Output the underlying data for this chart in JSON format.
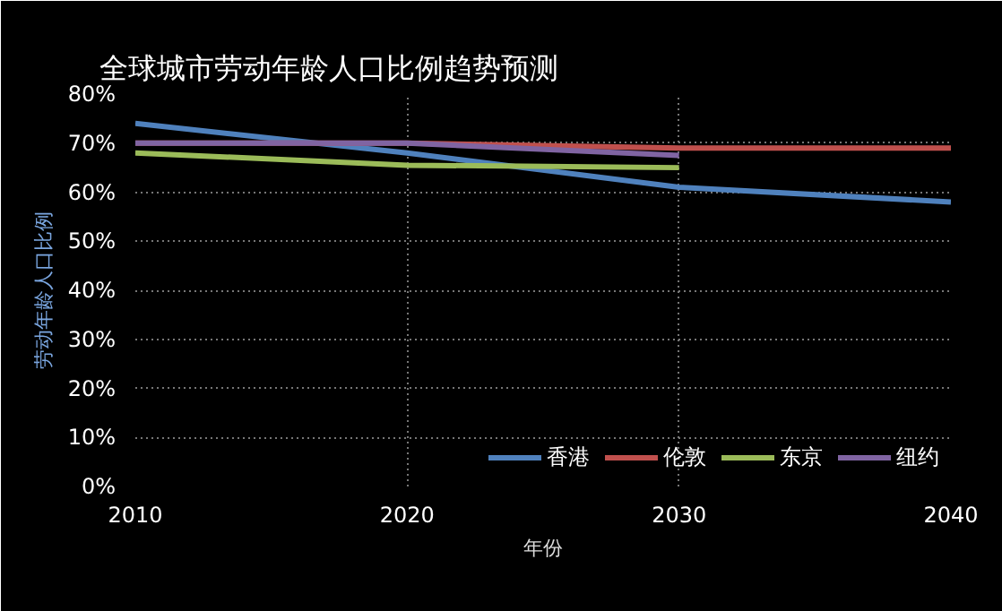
{
  "chart_data": {
    "type": "line",
    "title": "全球城市劳动年龄人口比例趋势预测",
    "xlabel": "年份",
    "ylabel": "劳动年龄人口比例",
    "x": [
      2010,
      2020,
      2030,
      2040
    ],
    "series": [
      {
        "name": "香港",
        "color": "#4f81bd",
        "values": [
          74,
          68,
          61,
          58
        ]
      },
      {
        "name": "伦敦",
        "color": "#c0504d",
        "values": [
          70,
          70,
          69,
          69
        ]
      },
      {
        "name": "东京",
        "color": "#9bbb59",
        "values": [
          68,
          65.5,
          65,
          null
        ]
      },
      {
        "name": "纽约",
        "color": "#8064a2",
        "values": [
          70,
          70,
          67.5,
          null
        ]
      }
    ],
    "xlim": [
      2010,
      2040
    ],
    "xticks": [
      2010,
      2020,
      2030,
      2040
    ],
    "ylim": [
      0,
      80
    ],
    "yticks": [
      {
        "value": 0,
        "label": "0%"
      },
      {
        "value": 10,
        "label": "10%"
      },
      {
        "value": 20,
        "label": "20%"
      },
      {
        "value": 30,
        "label": "30%"
      },
      {
        "value": 40,
        "label": "40%"
      },
      {
        "value": 50,
        "label": "50%"
      },
      {
        "value": 60,
        "label": "60%"
      },
      {
        "value": 70,
        "label": "70%"
      },
      {
        "value": 80,
        "label": "80%"
      }
    ],
    "grid": true,
    "legend": "bottom right",
    "marker": "none",
    "line_style": "solid"
  }
}
